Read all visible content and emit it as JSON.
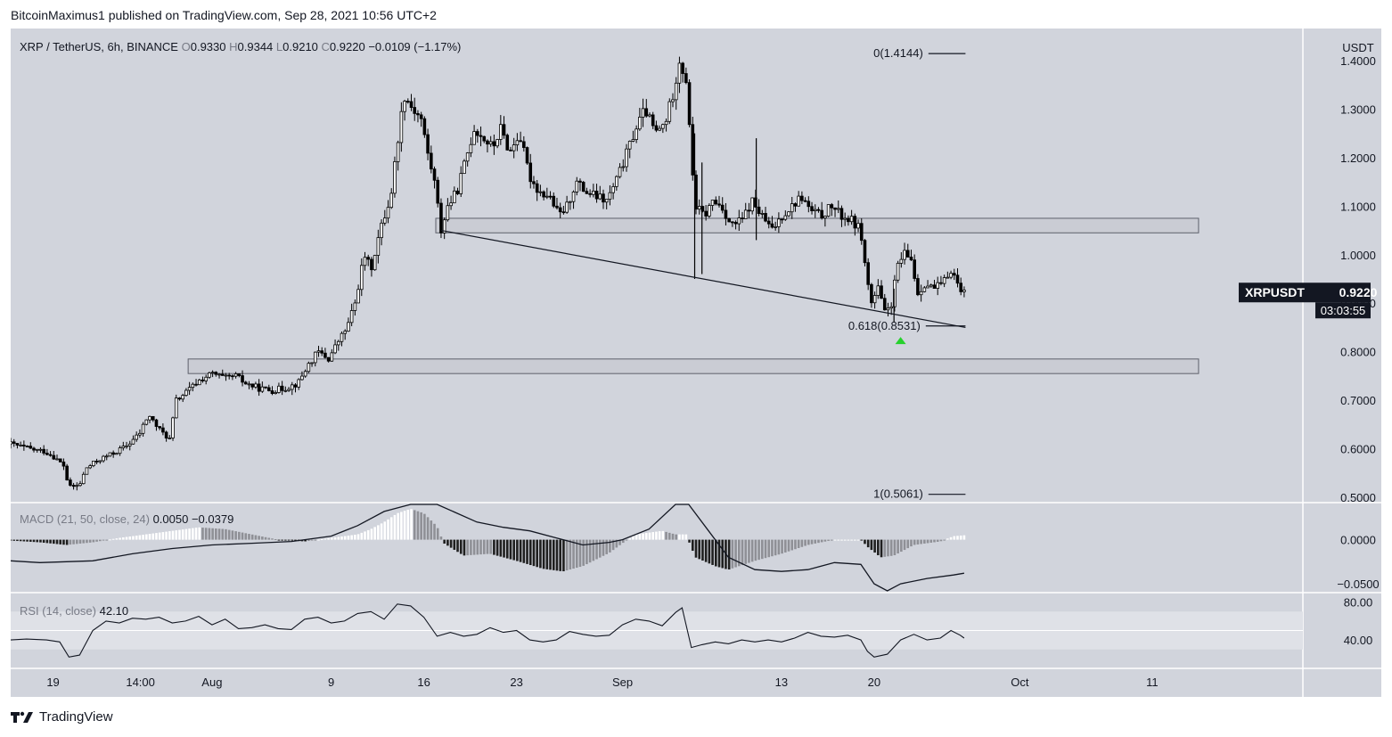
{
  "header": {
    "published_text": "BitcoinMaximus1 published on TradingView.com, Sep 28, 2021 10:56 UTC+2"
  },
  "legend": {
    "symbol": "XRP / TetherUS, 6h, BINANCE",
    "o_label": "O",
    "o_value": "0.9330",
    "h_label": "H",
    "h_value": "0.9344",
    "l_label": "L",
    "l_value": "0.9210",
    "c_label": "C",
    "c_value": "0.9220",
    "change": "−0.0109 (−1.17%)"
  },
  "macd_legend": {
    "label": "MACD (21, 50, close, 24)",
    "v1": "0.0050",
    "v2": "−0.0379"
  },
  "rsi_legend": {
    "label": "RSI (14, close)",
    "v1": "42.10"
  },
  "price_tag": {
    "symbol": "XRPUSDT",
    "price": "0.9220",
    "countdown": "03:03:55"
  },
  "footer": {
    "brand": "TradingView"
  },
  "colors": {
    "background": "#d1d4dc",
    "candle": "#000000",
    "zone_fill": "#c4c7cf",
    "zone_stroke": "#5d606b",
    "green_marker": "#26d12c",
    "tag_bg": "#131722",
    "hist_dark": "#1f1f1f",
    "hist_light": "#ffffff",
    "hist_grey": "#8f9096"
  },
  "chart_data": {
    "type": "candlestick",
    "symbol": "XRP / TetherUS",
    "interval": "6h",
    "exchange": "BINANCE",
    "currency": "USDT",
    "ylim": [
      0.5,
      1.42
    ],
    "y_ticks": [
      "1.4000",
      "1.3000",
      "1.2000",
      "1.1000",
      "1.0000",
      "0.9000",
      "0.8000",
      "0.7000",
      "0.6000",
      "0.5000"
    ],
    "x_ticks": [
      {
        "label": "19",
        "day": 19
      },
      {
        "label": "14:00",
        "day": 25.6
      },
      {
        "label": "Aug",
        "day": 31
      },
      {
        "label": "9",
        "day": 40
      },
      {
        "label": "16",
        "day": 47
      },
      {
        "label": "23",
        "day": 54
      },
      {
        "label": "Sep",
        "day": 62
      },
      {
        "label": "13",
        "day": 74
      },
      {
        "label": "20",
        "day": 81
      },
      {
        "label": "Oct",
        "day": 92
      },
      {
        "label": "11",
        "day": 102
      }
    ],
    "x_range_days": [
      15.8,
      106.3
    ],
    "close_path": [
      [
        15.8,
        0.61
      ],
      [
        16.5,
        0.605
      ],
      [
        17.5,
        0.598
      ],
      [
        18.3,
        0.595
      ],
      [
        19,
        0.585
      ],
      [
        19.8,
        0.565
      ],
      [
        20.2,
        0.52
      ],
      [
        21,
        0.525
      ],
      [
        21.5,
        0.56
      ],
      [
        22.5,
        0.578
      ],
      [
        23.5,
        0.59
      ],
      [
        24.5,
        0.605
      ],
      [
        25.5,
        0.63
      ],
      [
        26.2,
        0.67
      ],
      [
        27,
        0.64
      ],
      [
        27.8,
        0.62
      ],
      [
        28.3,
        0.7
      ],
      [
        29,
        0.715
      ],
      [
        30,
        0.74
      ],
      [
        31,
        0.755
      ],
      [
        32,
        0.745
      ],
      [
        32.8,
        0.75
      ],
      [
        33.5,
        0.735
      ],
      [
        34.5,
        0.725
      ],
      [
        35.5,
        0.72
      ],
      [
        36.5,
        0.725
      ],
      [
        37.5,
        0.735
      ],
      [
        38.2,
        0.77
      ],
      [
        39,
        0.8
      ],
      [
        39.8,
        0.785
      ],
      [
        40.5,
        0.82
      ],
      [
        41.2,
        0.85
      ],
      [
        41.8,
        0.9
      ],
      [
        42.5,
        1.0
      ],
      [
        43,
        0.97
      ],
      [
        43.7,
        1.05
      ],
      [
        44.5,
        1.12
      ],
      [
        45,
        1.23
      ],
      [
        45.5,
        1.33
      ],
      [
        46.2,
        1.3
      ],
      [
        46.8,
        1.28
      ],
      [
        47.2,
        1.22
      ],
      [
        47.8,
        1.15
      ],
      [
        48.3,
        1.05
      ],
      [
        48.8,
        1.1
      ],
      [
        49.5,
        1.13
      ],
      [
        50.2,
        1.2
      ],
      [
        50.8,
        1.26
      ],
      [
        51.5,
        1.24
      ],
      [
        52.2,
        1.22
      ],
      [
        52.8,
        1.26
      ],
      [
        53.5,
        1.21
      ],
      [
        54.2,
        1.25
      ],
      [
        55,
        1.16
      ],
      [
        55.7,
        1.13
      ],
      [
        56.5,
        1.12
      ],
      [
        57.2,
        1.08
      ],
      [
        57.8,
        1.1
      ],
      [
        58.5,
        1.15
      ],
      [
        59.2,
        1.13
      ],
      [
        60,
        1.12
      ],
      [
        60.8,
        1.11
      ],
      [
        61.5,
        1.15
      ],
      [
        62.2,
        1.2
      ],
      [
        63,
        1.26
      ],
      [
        63.7,
        1.3
      ],
      [
        64.5,
        1.25
      ],
      [
        65.2,
        1.27
      ],
      [
        65.8,
        1.33
      ],
      [
        66.3,
        1.4
      ],
      [
        66.8,
        1.36
      ],
      [
        67.2,
        1.2
      ],
      [
        67.5,
        1.1
      ],
      [
        68.2,
        1.08
      ],
      [
        68.8,
        1.11
      ],
      [
        69.5,
        1.1
      ],
      [
        70.2,
        1.06
      ],
      [
        71,
        1.07
      ],
      [
        71.8,
        1.11
      ],
      [
        72.5,
        1.08
      ],
      [
        73.3,
        1.05
      ],
      [
        74,
        1.08
      ],
      [
        74.8,
        1.1
      ],
      [
        75.5,
        1.12
      ],
      [
        76.2,
        1.09
      ],
      [
        77,
        1.08
      ],
      [
        77.8,
        1.1
      ],
      [
        78.5,
        1.08
      ],
      [
        79.3,
        1.07
      ],
      [
        80,
        1.05
      ],
      [
        80.3,
        0.98
      ],
      [
        80.8,
        0.9
      ],
      [
        81.3,
        0.93
      ],
      [
        81.8,
        0.88
      ],
      [
        82.3,
        0.9
      ],
      [
        82.8,
        0.98
      ],
      [
        83.3,
        1.0
      ],
      [
        83.8,
        0.99
      ],
      [
        84.3,
        0.92
      ],
      [
        84.8,
        0.94
      ],
      [
        85.5,
        0.93
      ],
      [
        86.2,
        0.94
      ],
      [
        86.8,
        0.97
      ],
      [
        87.4,
        0.935
      ],
      [
        87.8,
        0.922
      ]
    ],
    "zones": [
      {
        "name": "resistance",
        "from": 1.045,
        "to": 1.075,
        "day_start": 47.9,
        "day_end": 105.5
      },
      {
        "name": "support",
        "from": 0.755,
        "to": 0.785,
        "day_start": 29.2,
        "day_end": 105.5
      }
    ],
    "trendline": {
      "day_start": 48.3,
      "value_start": 1.05,
      "day_end": 87.9,
      "value_end": 0.85
    },
    "fib_levels": [
      {
        "label": "0(1.4144)",
        "value": 1.4144,
        "day_start": 85.1,
        "day_end": 87.9
      },
      {
        "label": "0.618(0.8531)",
        "value": 0.8531,
        "day_start": 84.9,
        "day_end": 87.9
      },
      {
        "label": "1(0.5061)",
        "value": 0.5061,
        "day_start": 85.1,
        "day_end": 87.9
      }
    ],
    "marker": {
      "type": "up-arrow",
      "day": 83.0,
      "value": 0.823
    },
    "macd": {
      "params": "21, 50, close, 24",
      "macd_value": 0.005,
      "signal_value": -0.0379,
      "y_ticks": [
        "0.0000",
        "−0.0500"
      ],
      "ylim": [
        -0.058,
        0.04
      ],
      "macd_path": [
        [
          15.8,
          -0.024
        ],
        [
          18,
          -0.026
        ],
        [
          22,
          -0.024
        ],
        [
          25,
          -0.016
        ],
        [
          28,
          -0.01
        ],
        [
          31,
          -0.006
        ],
        [
          34,
          -0.004
        ],
        [
          37,
          -0.002
        ],
        [
          40,
          0.004
        ],
        [
          42,
          0.016
        ],
        [
          44,
          0.032
        ],
        [
          46,
          0.045
        ],
        [
          48,
          0.04
        ],
        [
          51,
          0.02
        ],
        [
          53,
          0.014
        ],
        [
          55,
          0.01
        ],
        [
          57,
          0.002
        ],
        [
          59,
          -0.006
        ],
        [
          61,
          -0.003
        ],
        [
          62,
          0.0
        ],
        [
          64,
          0.012
        ],
        [
          66,
          0.045
        ],
        [
          67,
          0.04
        ],
        [
          68.5,
          0.01
        ],
        [
          70,
          -0.02
        ],
        [
          72,
          -0.034
        ],
        [
          74,
          -0.036
        ],
        [
          76,
          -0.034
        ],
        [
          78,
          -0.026
        ],
        [
          80,
          -0.028
        ],
        [
          81,
          -0.05
        ],
        [
          82,
          -0.058
        ],
        [
          83,
          -0.05
        ],
        [
          85,
          -0.044
        ],
        [
          87,
          -0.04
        ],
        [
          87.8,
          -0.038
        ]
      ],
      "histogram": [
        [
          15.8,
          -0.001
        ],
        [
          18,
          -0.003
        ],
        [
          20,
          -0.006
        ],
        [
          22,
          -0.003
        ],
        [
          24,
          0.002
        ],
        [
          26,
          0.006
        ],
        [
          28,
          0.01
        ],
        [
          30,
          0.014
        ],
        [
          32,
          0.012
        ],
        [
          34,
          0.006
        ],
        [
          36,
          0.0
        ],
        [
          38,
          -0.002
        ],
        [
          40,
          0.002
        ],
        [
          42,
          0.006
        ],
        [
          43,
          0.012
        ],
        [
          44,
          0.02
        ],
        [
          45,
          0.03
        ],
        [
          46,
          0.035
        ],
        [
          47,
          0.03
        ],
        [
          48,
          0.015
        ],
        [
          48.5,
          -0.004
        ],
        [
          50,
          -0.018
        ],
        [
          52,
          -0.016
        ],
        [
          54,
          -0.024
        ],
        [
          56,
          -0.033
        ],
        [
          57.5,
          -0.036
        ],
        [
          59,
          -0.03
        ],
        [
          61,
          -0.015
        ],
        [
          62,
          -0.004
        ],
        [
          63,
          0.006
        ],
        [
          65,
          0.01
        ],
        [
          66,
          0.006
        ],
        [
          66.8,
          0.006
        ],
        [
          67.5,
          -0.02
        ],
        [
          69,
          -0.03
        ],
        [
          70,
          -0.034
        ],
        [
          72,
          -0.024
        ],
        [
          74,
          -0.016
        ],
        [
          76,
          -0.006
        ],
        [
          78,
          0.0
        ],
        [
          80,
          0.0
        ],
        [
          80.5,
          -0.008
        ],
        [
          81.5,
          -0.02
        ],
        [
          82.5,
          -0.018
        ],
        [
          84,
          -0.006
        ],
        [
          86,
          -0.002
        ],
        [
          87,
          0.004
        ],
        [
          87.8,
          0.005
        ]
      ]
    },
    "rsi": {
      "params": "14, close",
      "value": 42.1,
      "y_ticks": [
        "80.00",
        "40.00"
      ],
      "band": [
        30,
        70
      ],
      "ylim": [
        10,
        90
      ],
      "rsi_path": [
        [
          15.8,
          40
        ],
        [
          17,
          41
        ],
        [
          18.5,
          40
        ],
        [
          19.5,
          38
        ],
        [
          20.2,
          22
        ],
        [
          21,
          24
        ],
        [
          22,
          50
        ],
        [
          23,
          60
        ],
        [
          24,
          58
        ],
        [
          25,
          63
        ],
        [
          26,
          62
        ],
        [
          27,
          64
        ],
        [
          28,
          58
        ],
        [
          29,
          60
        ],
        [
          30,
          65
        ],
        [
          31,
          56
        ],
        [
          32,
          62
        ],
        [
          33,
          52
        ],
        [
          34,
          53
        ],
        [
          35,
          56
        ],
        [
          36,
          52
        ],
        [
          37,
          51
        ],
        [
          38,
          62
        ],
        [
          39,
          64
        ],
        [
          40,
          58
        ],
        [
          41,
          60
        ],
        [
          42,
          68
        ],
        [
          43,
          70
        ],
        [
          44,
          62
        ],
        [
          45,
          78
        ],
        [
          46,
          76
        ],
        [
          47,
          64
        ],
        [
          48,
          44
        ],
        [
          49,
          48
        ],
        [
          50,
          44
        ],
        [
          51,
          46
        ],
        [
          52,
          53
        ],
        [
          53,
          48
        ],
        [
          54,
          50
        ],
        [
          55,
          40
        ],
        [
          56,
          38
        ],
        [
          57,
          40
        ],
        [
          58,
          49
        ],
        [
          59,
          46
        ],
        [
          60,
          44
        ],
        [
          61,
          45
        ],
        [
          62,
          56
        ],
        [
          63,
          62
        ],
        [
          64,
          60
        ],
        [
          65,
          55
        ],
        [
          66,
          69
        ],
        [
          66.5,
          74
        ],
        [
          67.2,
          32
        ],
        [
          68,
          35
        ],
        [
          69,
          38
        ],
        [
          70,
          36
        ],
        [
          71,
          40
        ],
        [
          72,
          38
        ],
        [
          73,
          40
        ],
        [
          74,
          38
        ],
        [
          75,
          42
        ],
        [
          76,
          48
        ],
        [
          77,
          44
        ],
        [
          78,
          43
        ],
        [
          79,
          45
        ],
        [
          80,
          40
        ],
        [
          80.5,
          28
        ],
        [
          81,
          22
        ],
        [
          82,
          25
        ],
        [
          83,
          40
        ],
        [
          84,
          46
        ],
        [
          85,
          40
        ],
        [
          86,
          42
        ],
        [
          86.8,
          50
        ],
        [
          87.5,
          45
        ],
        [
          87.8,
          42
        ]
      ]
    }
  }
}
